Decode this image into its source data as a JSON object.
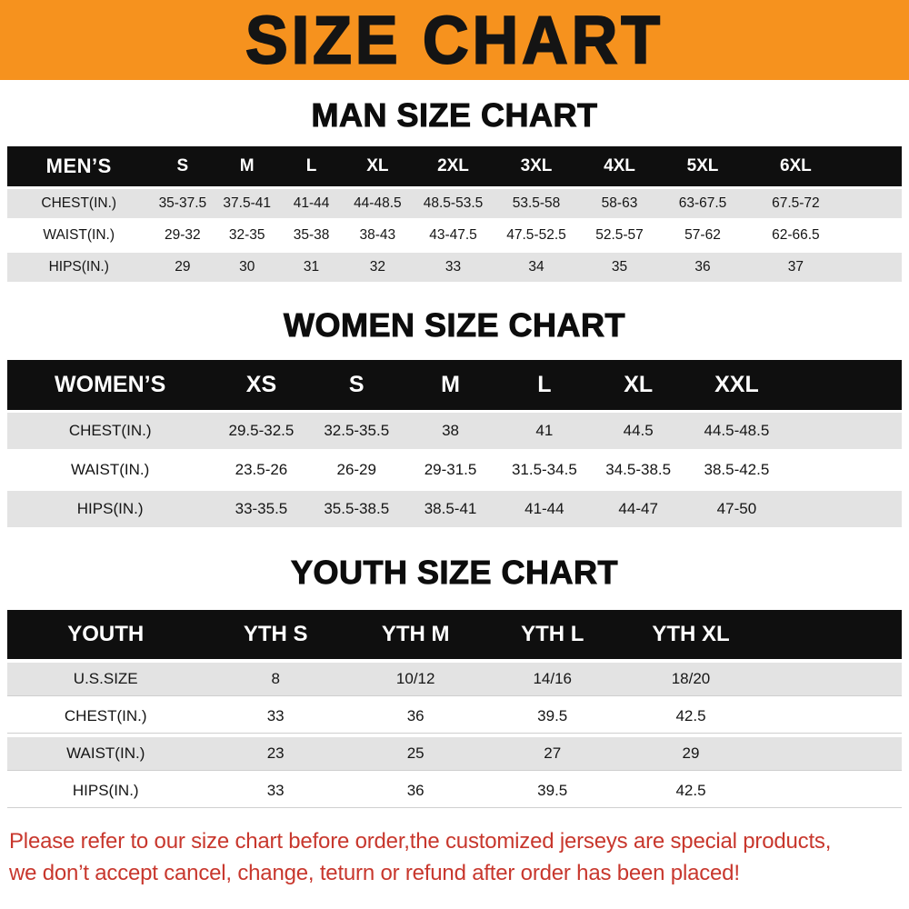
{
  "banner": {
    "title": "SIZE CHART"
  },
  "colors": {
    "banner_bg": "#F6921E",
    "table_header_bg": "#0F0F0F",
    "row_stripe": "#E3E3E3",
    "footer_red": "#C8372D"
  },
  "chart_data": [
    {
      "type": "table",
      "title": "MAN SIZE CHART",
      "columns": [
        "MEN’S",
        "S",
        "M",
        "L",
        "XL",
        "2XL",
        "3XL",
        "4XL",
        "5XL",
        "6XL"
      ],
      "rows": [
        [
          "CHEST(IN.)",
          "35-37.5",
          "37.5-41",
          "41-44",
          "44-48.5",
          "48.5-53.5",
          "53.5-58",
          "58-63",
          "63-67.5",
          "67.5-72"
        ],
        [
          "WAIST(IN.)",
          "29-32",
          "32-35",
          "35-38",
          "38-43",
          "43-47.5",
          "47.5-52.5",
          "52.5-57",
          "57-62",
          "62-66.5"
        ],
        [
          "HIPS(IN.)",
          "29",
          "30",
          "31",
          "32",
          "33",
          "34",
          "35",
          "36",
          "37"
        ]
      ]
    },
    {
      "type": "table",
      "title": "WOMEN SIZE CHART",
      "columns": [
        "WOMEN’S",
        "XS",
        "S",
        "M",
        "L",
        "XL",
        "XXL"
      ],
      "rows": [
        [
          "CHEST(IN.)",
          "29.5-32.5",
          "32.5-35.5",
          "38",
          "41",
          "44.5",
          "44.5-48.5"
        ],
        [
          "WAIST(IN.)",
          "23.5-26",
          "26-29",
          "29-31.5",
          "31.5-34.5",
          "34.5-38.5",
          "38.5-42.5"
        ],
        [
          "HIPS(IN.)",
          "33-35.5",
          "35.5-38.5",
          "38.5-41",
          "41-44",
          "44-47",
          "47-50"
        ]
      ]
    },
    {
      "type": "table",
      "title": "YOUTH SIZE CHART",
      "columns": [
        "YOUTH",
        "YTH S",
        "YTH M",
        "YTH L",
        "YTH XL"
      ],
      "rows": [
        [
          "U.S.SIZE",
          "8",
          "10/12",
          "14/16",
          "18/20"
        ],
        [
          "CHEST(IN.)",
          "33",
          "36",
          "39.5",
          "42.5"
        ],
        [
          "WAIST(IN.)",
          "23",
          "25",
          "27",
          "29"
        ],
        [
          "HIPS(IN.)",
          "33",
          "36",
          "39.5",
          "42.5"
        ]
      ]
    }
  ],
  "footer": {
    "line1": "Please refer to our size chart before order,the customized jerseys are special products,",
    "line2": "we don’t accept cancel, change, teturn or refund after order has been placed!"
  }
}
